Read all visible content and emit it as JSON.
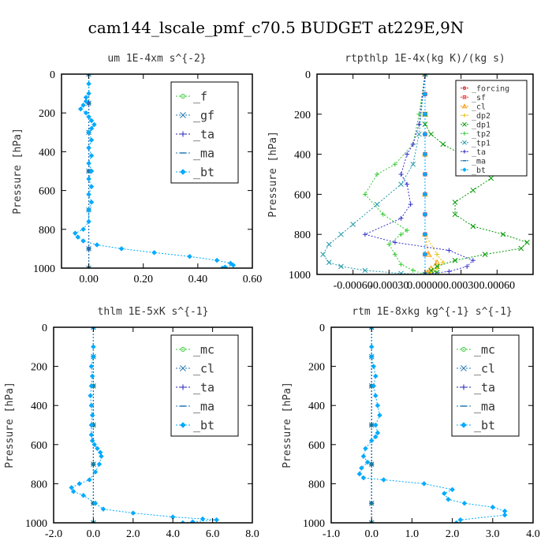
{
  "figure": {
    "title": "cam144_lscale_pmf_c70.5  BUDGET at229E,9N"
  },
  "chart_data": [
    {
      "type": "line",
      "title": "um  1E-4xm s^{-2}",
      "ylabel": "Pressure [hPa]",
      "xlim": [
        -0.1,
        0.6
      ],
      "ylim": [
        0,
        1000
      ],
      "xticks": [
        0.0,
        0.2,
        0.4,
        0.6
      ],
      "xtick_labels": [
        "0.00",
        "0.20",
        "0.40",
        "0.60"
      ],
      "yticks": [
        0,
        200,
        400,
        600,
        800,
        1000
      ],
      "legend_position": "top-right",
      "legend_size": "large",
      "series": [
        {
          "name": "_f",
          "color": "#33cc33",
          "marker": "circle",
          "x": [
            0.0,
            0.0,
            0.0,
            0.0,
            0.0,
            0.0,
            0.0
          ],
          "y": [
            0,
            150,
            300,
            500,
            700,
            900,
            1000
          ]
        },
        {
          "name": "_gf",
          "color": "#1f77b4",
          "marker": "x",
          "x": [
            0.0,
            0.0,
            0.0,
            0.0,
            0.0,
            0.0,
            0.0
          ],
          "y": [
            0,
            150,
            300,
            500,
            700,
            900,
            1000
          ]
        },
        {
          "name": "_ta",
          "color": "#2222bb",
          "marker": "plus",
          "x": [
            0.0,
            0.0,
            0.0,
            0.0,
            0.0,
            0.0,
            0.0
          ],
          "y": [
            0,
            150,
            300,
            500,
            700,
            900,
            1000
          ]
        },
        {
          "name": "_ma",
          "color": "#1f77b4",
          "marker": "dash",
          "x": [
            0.0,
            0.0,
            0.0,
            0.0,
            0.0,
            0.0,
            0.0
          ],
          "y": [
            0,
            150,
            300,
            500,
            700,
            900,
            1000
          ]
        },
        {
          "name": "_bt",
          "color": "#00aaff",
          "marker": "diamond",
          "x": [
            0.0,
            0.0,
            0.0,
            -0.01,
            -0.01,
            -0.02,
            -0.03,
            -0.01,
            0.0,
            0.01,
            0.02,
            0.01,
            0.0,
            0.01,
            0.0,
            0.01,
            0.0,
            0.01,
            0.0,
            0.01,
            0.0,
            0.01,
            0.0,
            0.0,
            -0.02,
            -0.05,
            -0.04,
            -0.02,
            0.03,
            0.12,
            0.24,
            0.37,
            0.47,
            0.52,
            0.53,
            0.5,
            0.49
          ],
          "y": [
            0,
            50,
            100,
            120,
            140,
            160,
            180,
            200,
            220,
            240,
            260,
            280,
            300,
            340,
            380,
            420,
            460,
            500,
            540,
            580,
            620,
            660,
            700,
            760,
            800,
            820,
            840,
            860,
            880,
            900,
            920,
            940,
            960,
            975,
            985,
            995,
            1000
          ]
        }
      ]
    },
    {
      "type": "line",
      "title": "rtpthlp  1E-4x(kg K)/(kg s)",
      "ylabel": "Pressure [hPa]",
      "xlim": [
        -0.0009,
        0.0009
      ],
      "ylim": [
        0,
        1000
      ],
      "xticks": [
        -0.0006,
        -0.0003,
        0.0,
        0.0003,
        0.0006
      ],
      "xtick_labels": [
        "-0.00060",
        "-0.00030",
        "0.00000",
        "0.00030",
        "0.00060"
      ],
      "yticks": [
        0,
        200,
        400,
        600,
        800,
        1000
      ],
      "legend_position": "top-right",
      "legend_size": "small",
      "series": [
        {
          "name": "_forcing",
          "color": "#cc2222",
          "marker": "circle",
          "x": [
            0,
            0,
            0,
            0,
            0,
            0,
            0,
            0,
            0,
            0,
            0
          ],
          "y": [
            0,
            100,
            200,
            300,
            400,
            500,
            600,
            700,
            800,
            900,
            1000
          ]
        },
        {
          "name": "_sf",
          "color": "#ee3333",
          "marker": "square",
          "x": [
            0,
            0,
            0,
            0,
            0,
            0,
            0,
            0,
            0,
            0,
            0
          ],
          "y": [
            0,
            100,
            200,
            300,
            400,
            500,
            600,
            700,
            800,
            900,
            1000
          ]
        },
        {
          "name": "_cl",
          "color": "#ff9900",
          "marker": "triangle",
          "x": [
            0,
            0,
            0,
            0,
            0,
            3e-05,
            0.0001,
            5e-05,
            2e-05,
            0
          ],
          "y": [
            0,
            200,
            400,
            600,
            800,
            900,
            940,
            970,
            990,
            1000
          ]
        },
        {
          "name": "_dp2",
          "color": "#e6c200",
          "marker": "plus",
          "x": [
            0,
            0,
            0,
            0,
            0,
            0.0001,
            0.00015,
            0.0001,
            5e-05,
            0
          ],
          "y": [
            0,
            200,
            400,
            600,
            800,
            900,
            940,
            970,
            990,
            1000
          ]
        },
        {
          "name": "_dp1",
          "color": "#009900",
          "marker": "x",
          "x": [
            0,
            0,
            0,
            5e-05,
            0.00015,
            0.0003,
            0.00045,
            0.00055,
            0.0004,
            0.00025,
            0.00025,
            0.0004,
            0.00065,
            0.00085,
            0.0008,
            0.0005,
            0.00025,
            0.0001,
            5e-05,
            0.0001,
            0
          ],
          "y": [
            0,
            200,
            250,
            300,
            350,
            400,
            450,
            520,
            580,
            640,
            700,
            760,
            800,
            840,
            870,
            900,
            930,
            960,
            980,
            990,
            1000
          ]
        },
        {
          "name": "_tp2",
          "color": "#33cc33",
          "marker": "plus",
          "x": [
            0,
            -5e-05,
            -0.0001,
            -0.00025,
            -0.0004,
            -0.0005,
            -0.00035,
            -0.00015,
            -0.0002,
            -0.0003,
            -0.00025,
            -0.0002,
            -0.0001,
            0
          ],
          "y": [
            0,
            200,
            350,
            450,
            500,
            600,
            700,
            780,
            800,
            850,
            900,
            950,
            980,
            1000
          ]
        },
        {
          "name": "_tp1",
          "color": "#2299aa",
          "marker": "x",
          "x": [
            0,
            -5e-05,
            -0.0001,
            -0.0002,
            -0.0004,
            -0.0006,
            -0.0007,
            -0.0008,
            -0.00085,
            -0.0008,
            -0.0007,
            -0.0005,
            -0.0002,
            0
          ],
          "y": [
            0,
            300,
            450,
            550,
            650,
            750,
            800,
            850,
            900,
            940,
            960,
            980,
            995,
            1000
          ]
        },
        {
          "name": "_ta",
          "color": "#3333cc",
          "marker": "plus",
          "x": [
            0,
            -5e-05,
            -0.0001,
            -0.00015,
            -0.0002,
            -0.00015,
            -0.00012,
            -0.0002,
            -0.0005,
            -0.00025,
            0.0002,
            0.0004,
            0.00035,
            0.0002,
            0
          ],
          "y": [
            0,
            250,
            350,
            400,
            500,
            550,
            650,
            720,
            800,
            840,
            880,
            930,
            960,
            985,
            1000
          ]
        },
        {
          "name": "_ma",
          "color": "#1f77b4",
          "marker": "dash",
          "x": [
            0,
            0,
            0,
            0,
            0,
            0,
            0,
            0,
            0,
            0,
            0
          ],
          "y": [
            0,
            100,
            200,
            300,
            400,
            500,
            600,
            700,
            800,
            900,
            1000
          ]
        },
        {
          "name": "_bt",
          "color": "#00aaff",
          "marker": "diamond",
          "x": [
            0,
            0,
            0,
            0,
            0,
            0,
            0,
            0,
            0,
            0,
            0
          ],
          "y": [
            0,
            100,
            200,
            300,
            400,
            500,
            600,
            700,
            800,
            900,
            1000
          ]
        }
      ]
    },
    {
      "type": "line",
      "title": "thlm  1E-5xK s^{-1}",
      "ylabel": "Pressure [hPa]",
      "xlim": [
        -2.0,
        8.0
      ],
      "ylim": [
        0,
        1000
      ],
      "xticks": [
        -2.0,
        0.0,
        2.0,
        4.0,
        6.0,
        8.0
      ],
      "xtick_labels": [
        "-2.0",
        "0.0",
        "2.0",
        "4.0",
        "6.0",
        "8.0"
      ],
      "yticks": [
        0,
        200,
        400,
        600,
        800,
        1000
      ],
      "legend_position": "top-right",
      "legend_size": "large",
      "series": [
        {
          "name": "_mc",
          "color": "#33cc33",
          "marker": "circle",
          "x": [
            0,
            0,
            0,
            0,
            0,
            0,
            0
          ],
          "y": [
            0,
            150,
            300,
            500,
            700,
            900,
            1000
          ]
        },
        {
          "name": "_cl",
          "color": "#1f77b4",
          "marker": "x",
          "x": [
            0,
            0,
            0,
            0,
            0,
            0,
            0
          ],
          "y": [
            0,
            150,
            300,
            500,
            700,
            900,
            1000
          ]
        },
        {
          "name": "_ta",
          "color": "#2222bb",
          "marker": "plus",
          "x": [
            0,
            0,
            0,
            0,
            0,
            0,
            0
          ],
          "y": [
            0,
            150,
            300,
            500,
            700,
            900,
            1000
          ]
        },
        {
          "name": "_ma",
          "color": "#1f77b4",
          "marker": "dash",
          "x": [
            0,
            0,
            0,
            0,
            0,
            0,
            0
          ],
          "y": [
            0,
            150,
            300,
            500,
            700,
            900,
            1000
          ]
        },
        {
          "name": "_bt",
          "color": "#00aaff",
          "marker": "diamond",
          "x": [
            0,
            0,
            0,
            -0.1,
            -0.05,
            -0.1,
            -0.15,
            -0.1,
            -0.05,
            -0.1,
            -0.1,
            -0.05,
            0.05,
            0.2,
            0.35,
            0.4,
            0.3,
            0.1,
            -0.2,
            -0.7,
            -1.1,
            -1.0,
            -0.5,
            0.1,
            0.5,
            2.0,
            4.0,
            5.5,
            6.2,
            5.0,
            4.5
          ],
          "y": [
            0,
            100,
            150,
            200,
            250,
            300,
            350,
            400,
            450,
            500,
            550,
            580,
            600,
            620,
            640,
            660,
            700,
            740,
            780,
            800,
            820,
            840,
            860,
            900,
            930,
            950,
            970,
            980,
            985,
            995,
            1000
          ]
        }
      ]
    },
    {
      "type": "line",
      "title": "rtm  1E-8xkg kg^{-1} s^{-1}",
      "ylabel": "Pressure [hPa]",
      "xlim": [
        -1.0,
        4.0
      ],
      "ylim": [
        0,
        1000
      ],
      "xticks": [
        -1.0,
        0.0,
        1.0,
        2.0,
        3.0,
        4.0
      ],
      "xtick_labels": [
        "-1.0",
        "0.0",
        "1.0",
        "2.0",
        "3.0",
        "4.0"
      ],
      "yticks": [
        0,
        200,
        400,
        600,
        800,
        1000
      ],
      "legend_position": "top-right",
      "legend_size": "large",
      "series": [
        {
          "name": "_mc",
          "color": "#33cc33",
          "marker": "circle",
          "x": [
            0,
            0,
            0,
            0,
            0,
            0,
            0
          ],
          "y": [
            0,
            150,
            300,
            500,
            700,
            900,
            1000
          ]
        },
        {
          "name": "_cl",
          "color": "#1f77b4",
          "marker": "x",
          "x": [
            0,
            0,
            0,
            0,
            0,
            0,
            0
          ],
          "y": [
            0,
            150,
            300,
            500,
            700,
            900,
            1000
          ]
        },
        {
          "name": "_ta",
          "color": "#2222bb",
          "marker": "plus",
          "x": [
            0,
            0,
            0,
            0,
            0,
            0,
            0
          ],
          "y": [
            0,
            150,
            300,
            500,
            700,
            900,
            1000
          ]
        },
        {
          "name": "_ma",
          "color": "#1f77b4",
          "marker": "dash",
          "x": [
            0,
            0,
            0,
            0,
            0,
            0,
            0
          ],
          "y": [
            0,
            150,
            300,
            500,
            700,
            900,
            1000
          ]
        },
        {
          "name": "_bt",
          "color": "#00aaff",
          "marker": "diamond",
          "x": [
            0,
            0,
            0,
            0.05,
            0.1,
            0.05,
            0.1,
            0.15,
            0.2,
            0.1,
            0.15,
            0.1,
            0.0,
            -0.15,
            -0.2,
            -0.1,
            -0.25,
            -0.3,
            -0.2,
            0.3,
            1.3,
            2.0,
            1.8,
            1.9,
            2.3,
            3.0,
            3.3,
            3.3,
            2.2,
            2.1
          ],
          "y": [
            0,
            100,
            150,
            200,
            250,
            300,
            350,
            400,
            450,
            500,
            540,
            560,
            580,
            620,
            660,
            690,
            720,
            750,
            770,
            780,
            800,
            830,
            850,
            880,
            900,
            920,
            940,
            960,
            985,
            1000
          ]
        }
      ]
    }
  ]
}
